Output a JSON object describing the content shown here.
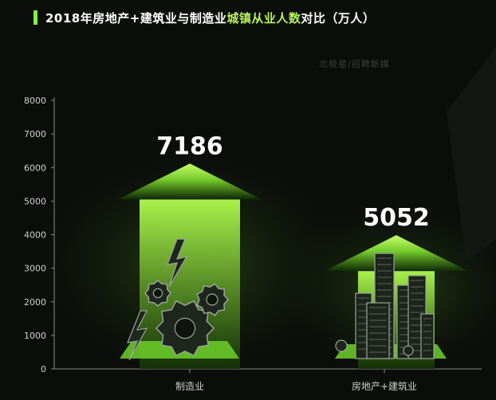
{
  "title": {
    "part_a": "2018年房地产+建筑业与制造业",
    "part_b": "城镇从业人数",
    "part_c": "对比（万人）"
  },
  "watermark": "北极星/招聘新媒",
  "colors": {
    "background": "#0b0d0b",
    "accent": "#b6f35a",
    "arrow_top": "#c8ff6a",
    "arrow_bottom": "#0e2a04",
    "label": "#cfcfcf",
    "value_text": "#ffffff",
    "illustration": "#2e3a2e"
  },
  "icons": {
    "manufacturing": "gears-and-lightning-icon",
    "real_estate": "city-buildings-icon"
  },
  "chart_data": {
    "type": "bar",
    "categories": [
      "制造业",
      "房地产+建筑业"
    ],
    "values": [
      7186,
      5052
    ],
    "value_labels": [
      "7186",
      "5052"
    ],
    "yticks": [
      0,
      1000,
      2000,
      3000,
      4000,
      5000,
      6000,
      7000,
      8000
    ],
    "ylim": [
      0,
      8000
    ],
    "grid": false,
    "legend": "none"
  }
}
